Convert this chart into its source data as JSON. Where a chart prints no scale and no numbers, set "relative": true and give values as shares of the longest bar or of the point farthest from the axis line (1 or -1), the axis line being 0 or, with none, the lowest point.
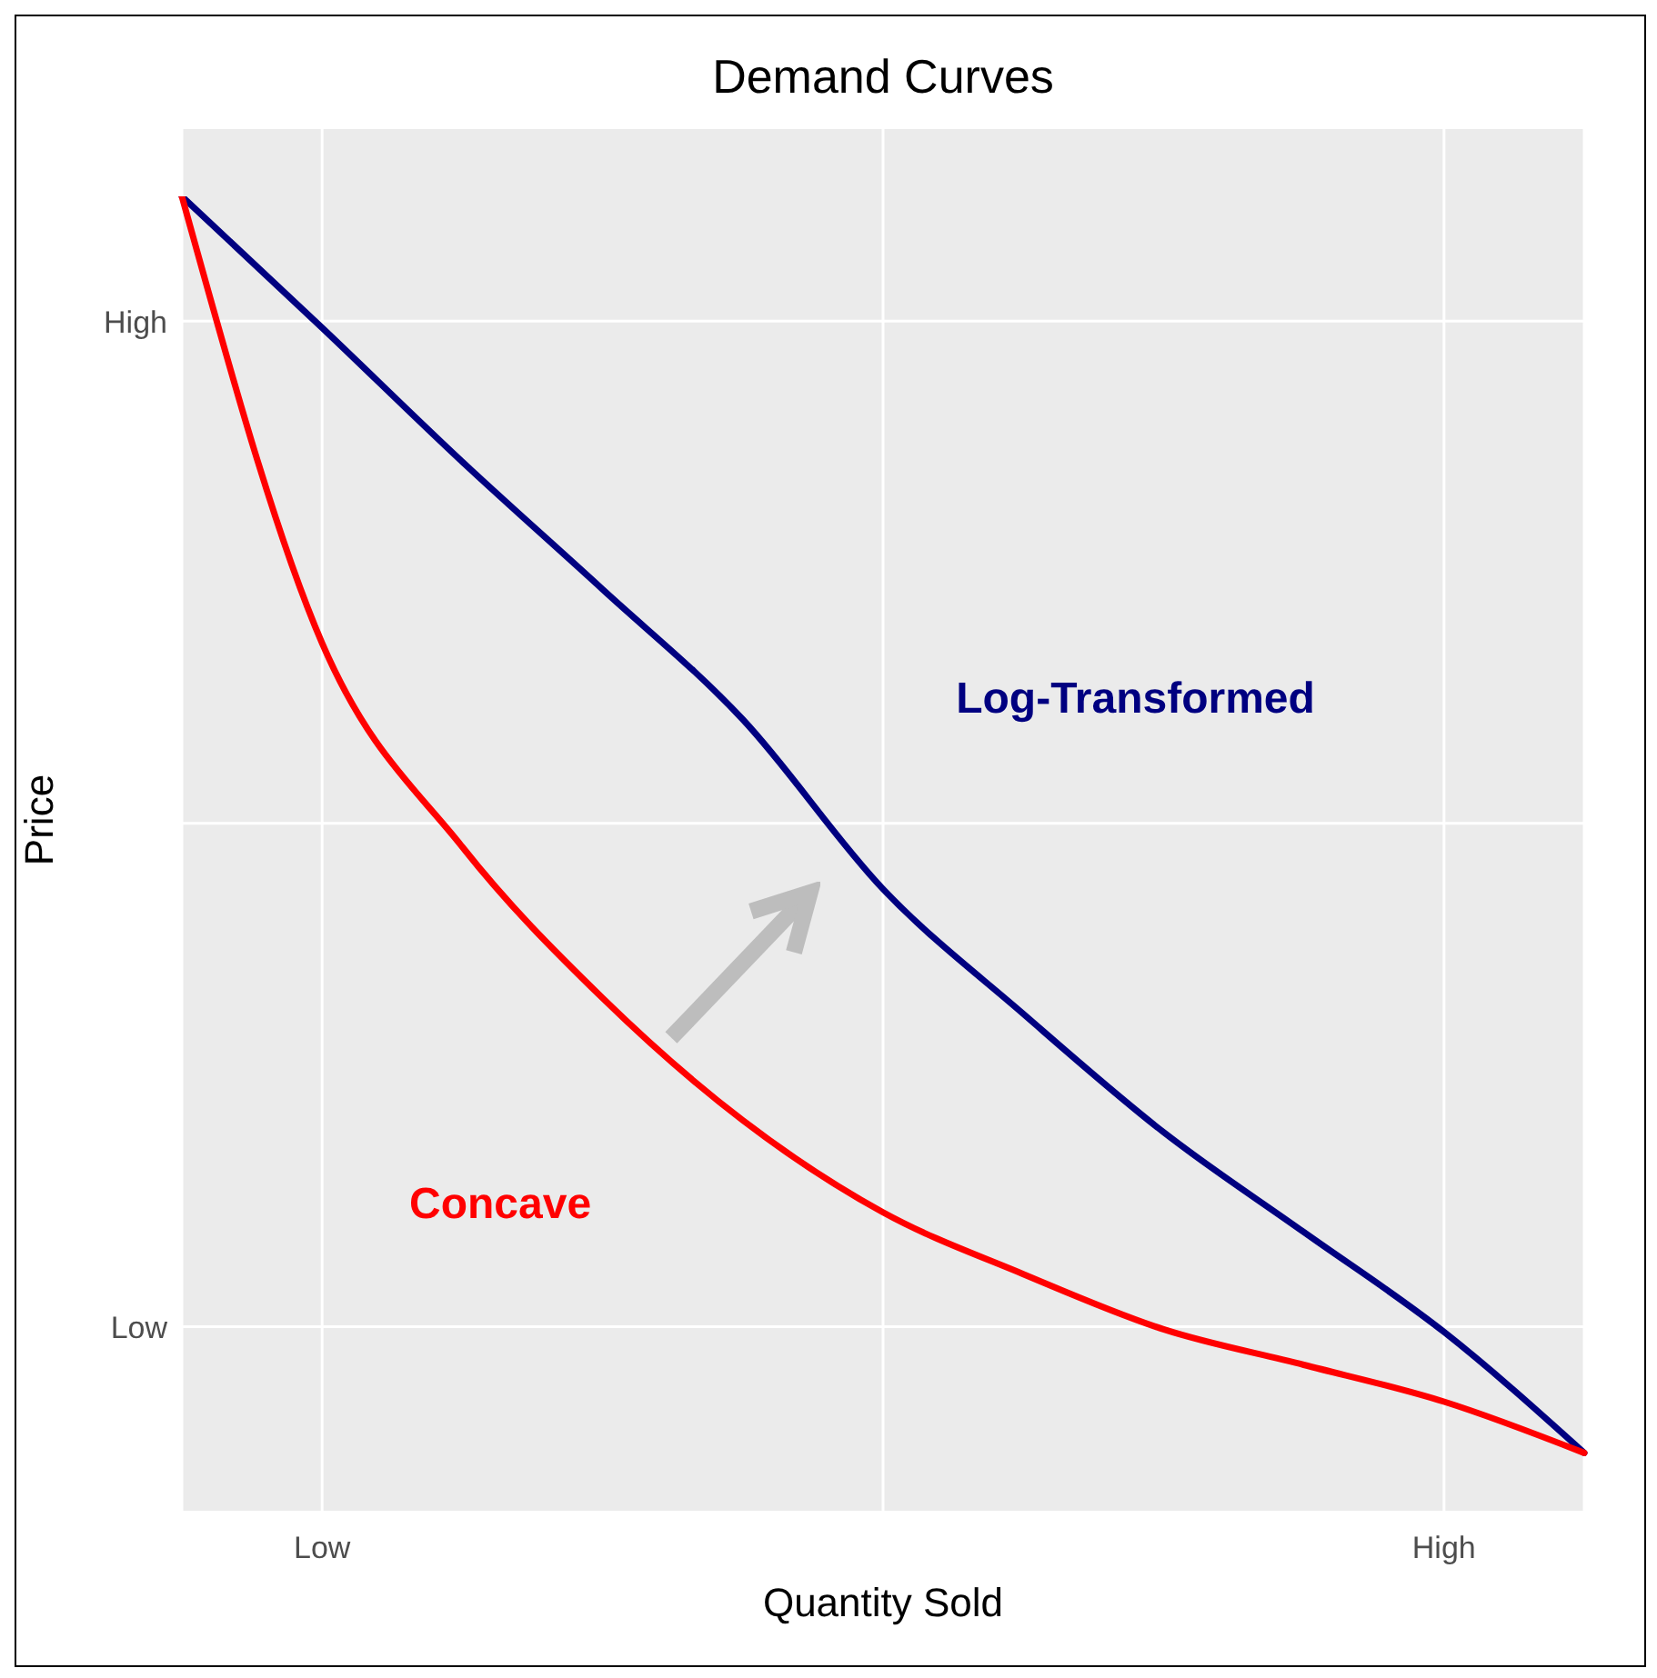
{
  "chart_data": {
    "type": "line",
    "title": "Demand Curves",
    "xlabel": "Quantity Sold",
    "ylabel": "Price",
    "relative": true,
    "categories": [
      null,
      "Low",
      null,
      null,
      null,
      null,
      null,
      null,
      null,
      "High",
      null
    ],
    "annotations": [
      "High",
      "Low"
    ],
    "grid": true,
    "line_style": "solid",
    "series": [
      {
        "name": "Log-Transformed",
        "color": "#000080",
        "values": [
          1,
          0.9,
          0.798,
          0.701,
          0.602,
          0.473,
          0.378,
          0.288,
          0.212,
          0.136,
          0.044
        ]
      },
      {
        "name": "Concave",
        "color": "#ff0000",
        "values": [
          1,
          0.66,
          0.505,
          0.39,
          0.297,
          0.227,
          0.18,
          0.138,
          0.111,
          0.083,
          0.044
        ]
      }
    ]
  }
}
